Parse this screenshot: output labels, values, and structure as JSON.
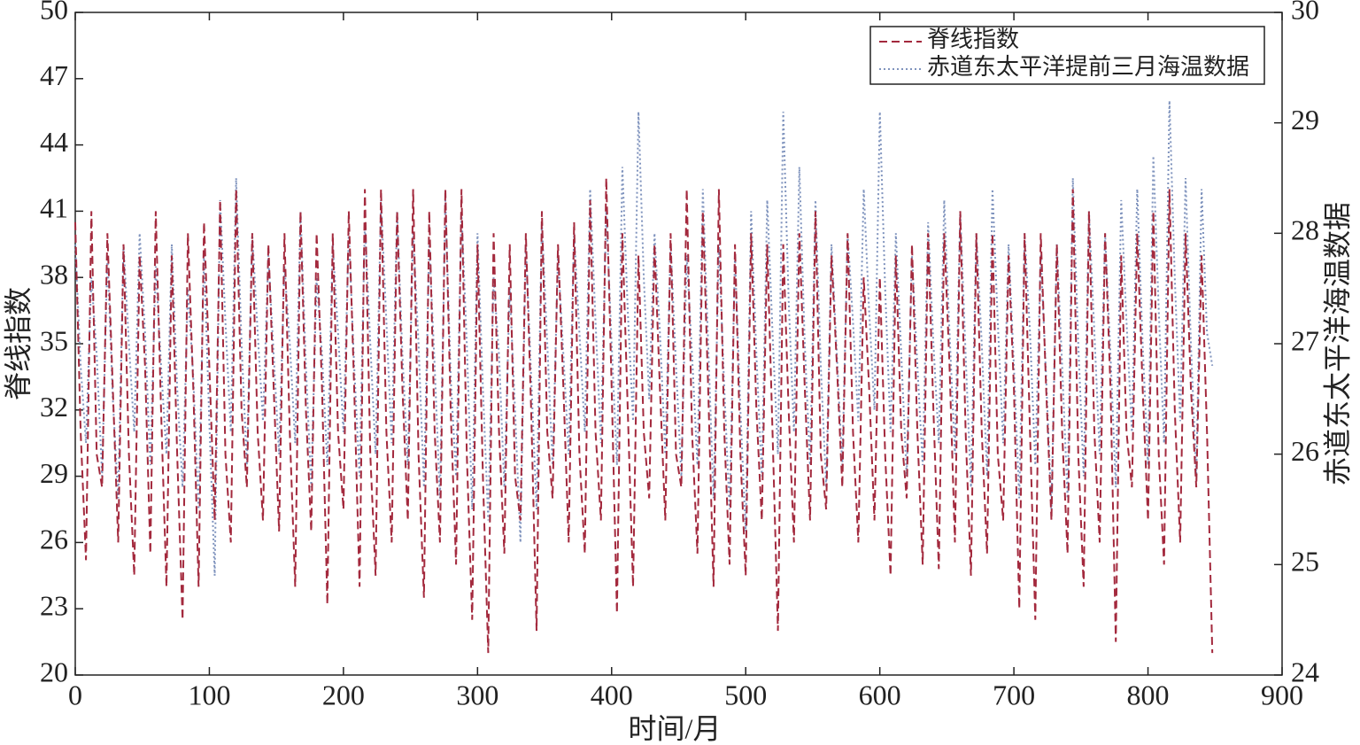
{
  "chart_data": {
    "type": "line",
    "xlabel": "时间/月",
    "ylabel": "脊线指数",
    "y2label": "赤道东太平洋海温数据",
    "xlim": [
      0,
      900
    ],
    "xticks": [
      0,
      100,
      200,
      300,
      400,
      500,
      600,
      700,
      800,
      900
    ],
    "ylim": [
      20,
      50
    ],
    "yticks": [
      20,
      23,
      26,
      29,
      32,
      35,
      38,
      41,
      44,
      47,
      50
    ],
    "y2lim": [
      24,
      30
    ],
    "y2ticks": [
      24,
      25,
      26,
      27,
      28,
      29,
      30
    ],
    "legend": "upper right",
    "x": [
      0,
      4,
      8,
      12,
      16,
      20,
      24,
      28,
      32,
      36,
      40,
      44,
      48,
      52,
      56,
      60,
      64,
      68,
      72,
      76,
      80,
      84,
      88,
      92,
      96,
      100,
      104,
      108,
      112,
      116,
      120,
      124,
      128,
      132,
      136,
      140,
      144,
      148,
      152,
      156,
      160,
      164,
      168,
      172,
      176,
      180,
      184,
      188,
      192,
      196,
      200,
      204,
      208,
      212,
      216,
      220,
      224,
      228,
      232,
      236,
      240,
      244,
      248,
      252,
      256,
      260,
      264,
      268,
      272,
      276,
      280,
      284,
      288,
      292,
      296,
      300,
      304,
      308,
      312,
      316,
      320,
      324,
      328,
      332,
      336,
      340,
      344,
      348,
      352,
      356,
      360,
      364,
      368,
      372,
      376,
      380,
      384,
      388,
      392,
      396,
      400,
      404,
      408,
      412,
      416,
      420,
      424,
      428,
      432,
      436,
      440,
      444,
      448,
      452,
      456,
      460,
      464,
      468,
      472,
      476,
      480,
      484,
      488,
      492,
      496,
      500,
      504,
      508,
      512,
      516,
      520,
      524,
      528,
      532,
      536,
      540,
      544,
      548,
      552,
      556,
      560,
      564,
      568,
      572,
      576,
      580,
      584,
      588,
      592,
      596,
      600,
      604,
      608,
      612,
      616,
      620,
      624,
      628,
      632,
      636,
      640,
      644,
      648,
      652,
      656,
      660,
      664,
      668,
      672,
      676,
      680,
      684,
      688,
      692,
      696,
      700,
      704,
      708,
      712,
      716,
      720,
      724,
      728,
      732,
      736,
      740,
      744,
      748,
      752,
      756,
      760,
      764,
      768,
      772,
      776,
      780,
      784,
      788,
      792,
      796,
      800,
      804,
      808,
      812,
      816,
      820,
      824,
      828,
      832,
      836,
      840,
      844,
      848
    ],
    "series": [
      {
        "name": "脊线指数",
        "color": "#a3293d",
        "style": "dashed",
        "values": [
          40.5,
          31,
          25.2,
          41,
          30,
          28.5,
          40,
          33,
          26,
          39.5,
          30,
          24.5,
          39,
          34,
          25.5,
          41,
          32,
          24,
          39,
          30,
          22.5,
          40,
          33,
          24,
          40.5,
          34,
          27,
          41.5,
          30,
          26,
          42,
          32,
          28.5,
          40,
          31,
          27,
          39.5,
          33,
          26.5,
          40,
          31,
          24,
          41,
          32,
          26.5,
          40,
          33,
          23.2,
          40,
          31,
          27.5,
          41,
          33,
          24,
          42,
          30,
          24.5,
          42,
          31,
          26,
          41,
          33,
          27,
          42,
          30,
          23.5,
          41,
          31,
          26,
          42,
          32,
          25,
          42,
          30,
          22.5,
          39.5,
          29,
          21,
          40,
          31,
          25.5,
          39.5,
          29,
          27,
          40,
          32,
          22,
          41,
          31,
          28,
          39.5,
          33,
          26,
          40.5,
          30,
          25.5,
          41.5,
          31,
          27,
          42.5,
          33,
          22.8,
          40,
          32,
          24,
          39,
          31,
          28,
          39.5,
          33,
          27,
          40,
          30,
          28.5,
          42,
          31,
          25.5,
          41,
          33,
          24,
          42,
          31,
          25,
          39.5,
          30,
          24.5,
          40,
          32,
          27,
          39.5,
          31,
          22,
          39.5,
          32,
          26,
          40,
          33,
          27,
          41,
          30,
          27.5,
          39,
          34,
          28.5,
          40,
          31,
          26,
          38,
          33,
          27,
          38,
          30,
          24.5,
          39,
          31,
          28,
          39.5,
          31,
          25,
          40,
          32,
          24.8,
          40,
          34,
          26,
          41,
          31,
          24.5,
          40,
          31,
          25.5,
          40,
          30,
          27,
          39,
          33,
          23,
          40,
          31,
          22.5,
          40,
          33,
          27,
          39.5,
          31,
          25.5,
          42,
          30,
          24,
          41,
          31,
          26,
          40,
          33,
          21.5,
          39,
          31,
          28.5,
          40,
          33,
          27,
          41,
          30,
          25,
          42,
          32,
          26,
          40,
          33,
          28.5,
          39,
          31,
          21
        ]
      },
      {
        "name": "赤道东太平洋提前三月海温数据",
        "color": "#7f93bd",
        "style": "dotted",
        "axis": "y2",
        "values": [
          27.9,
          26.8,
          26.1,
          27.6,
          26.9,
          25.8,
          27.8,
          26.5,
          25.6,
          27.9,
          27.0,
          26.2,
          28.0,
          27.1,
          25.9,
          27.7,
          26.8,
          26.0,
          27.9,
          26.6,
          25.7,
          27.5,
          26.7,
          25.5,
          27.8,
          26.3,
          24.9,
          28.3,
          27.2,
          26.2,
          28.5,
          27.0,
          25.9,
          28.0,
          27.1,
          26.3,
          27.8,
          26.9,
          26.0,
          27.7,
          27.0,
          26.1,
          28.2,
          26.8,
          25.7,
          27.6,
          26.9,
          25.9,
          27.9,
          27.1,
          26.2,
          28.0,
          26.8,
          25.8,
          28.1,
          27.0,
          26.0,
          28.3,
          27.2,
          26.1,
          28.2,
          26.9,
          25.9,
          28.0,
          27.0,
          25.7,
          27.9,
          26.8,
          25.6,
          28.3,
          26.7,
          25.8,
          28.2,
          27.0,
          25.5,
          28.0,
          26.6,
          25.4,
          27.6,
          26.9,
          25.7,
          27.5,
          26.4,
          25.2,
          27.9,
          26.7,
          25.5,
          28.1,
          27.0,
          25.9,
          27.8,
          26.9,
          26.0,
          28.0,
          27.1,
          26.2,
          28.4,
          27.2,
          26.1,
          28.2,
          27.0,
          25.9,
          28.6,
          27.3,
          26.3,
          29.1,
          27.6,
          26.5,
          28.0,
          27.1,
          26.0,
          27.9,
          26.8,
          25.8,
          27.8,
          26.9,
          25.9,
          28.4,
          27.0,
          25.6,
          27.9,
          26.6,
          25.5,
          27.8,
          26.4,
          25.3,
          28.2,
          26.9,
          25.8,
          28.3,
          27.1,
          26.0,
          29.1,
          27.4,
          26.2,
          28.6,
          27.0,
          25.9,
          28.3,
          26.8,
          25.7,
          27.9,
          26.9,
          25.9,
          28.0,
          27.2,
          26.3,
          28.4,
          27.3,
          26.4,
          29.1,
          27.5,
          26.2,
          28.0,
          26.9,
          25.8,
          27.8,
          26.8,
          25.9,
          28.1,
          27.0,
          26.1,
          28.3,
          27.1,
          26.0,
          28.2,
          26.9,
          25.7,
          28.0,
          27.0,
          25.8,
          28.4,
          27.2,
          26.1,
          27.9,
          26.8,
          25.6,
          28.0,
          27.1,
          25.9,
          27.8,
          26.7,
          25.5,
          27.9,
          26.8,
          25.6,
          28.5,
          27.0,
          25.8,
          28.2,
          27.1,
          26.0,
          28.0,
          26.9,
          25.7,
          28.3,
          27.2,
          26.2,
          28.4,
          27.0,
          25.9,
          28.7,
          27.3,
          26.1,
          29.2,
          27.6,
          26.3,
          28.5,
          27.0,
          25.8,
          28.4,
          27.1,
          26.8
        ]
      }
    ]
  }
}
